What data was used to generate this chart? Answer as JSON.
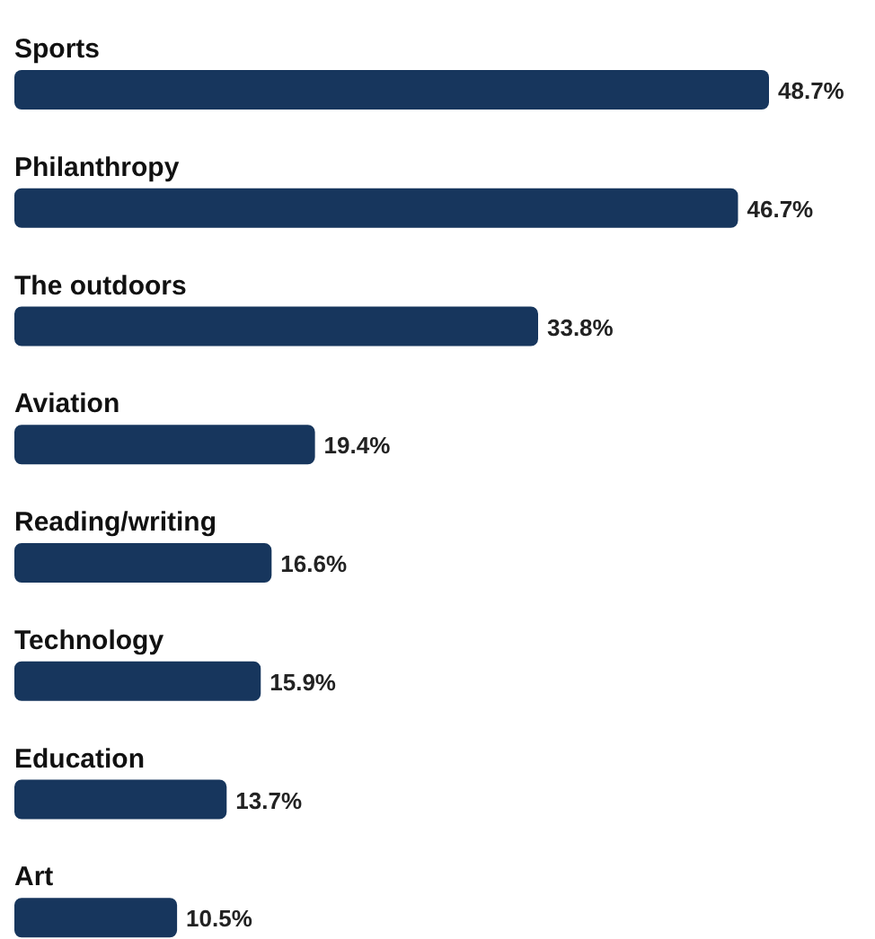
{
  "chart_data": {
    "type": "bar",
    "orientation": "horizontal",
    "categories": [
      "Sports",
      "Philanthropy",
      "The outdoors",
      "Aviation",
      "Reading/writing",
      "Technology",
      "Education",
      "Art"
    ],
    "values": [
      48.7,
      46.7,
      33.8,
      19.4,
      16.6,
      15.9,
      13.7,
      10.5
    ],
    "value_labels": [
      "48.7%",
      "46.7%",
      "33.8%",
      "19.4%",
      "16.6%",
      "15.9%",
      "13.7%",
      "10.5%"
    ],
    "color": "#17365d"
  }
}
